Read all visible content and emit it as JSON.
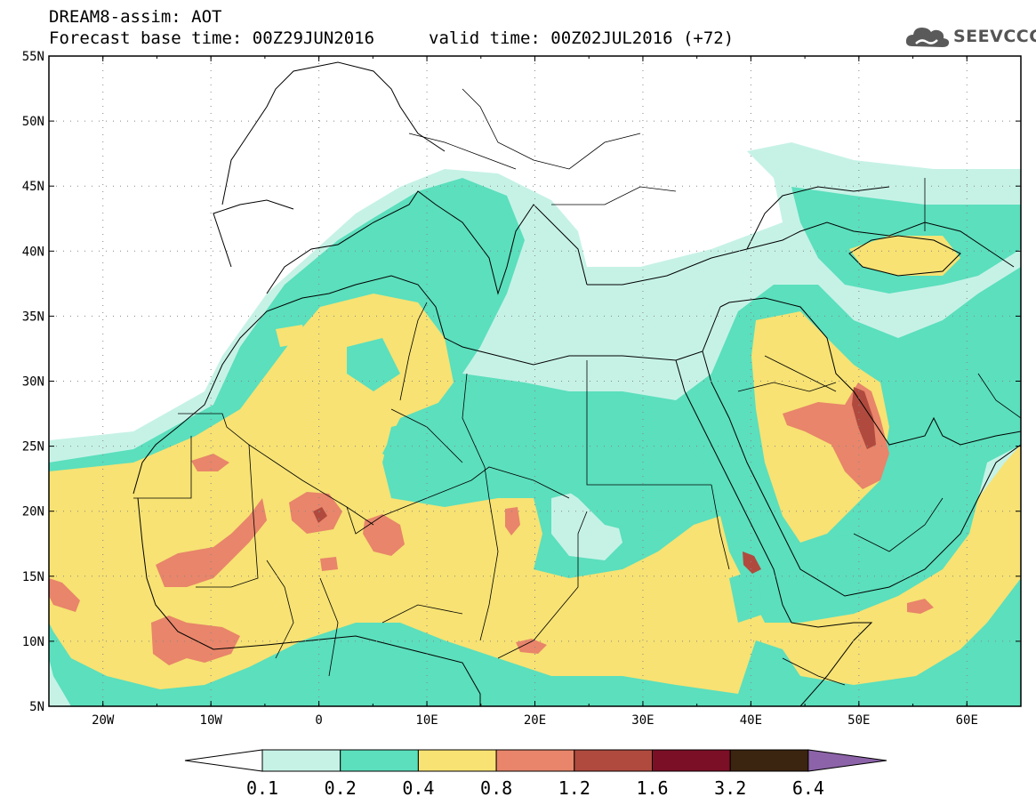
{
  "header": {
    "line1": "DREAM8-assim: AOT",
    "line2": "Forecast base time: 00Z29JUN2016",
    "valid": "valid time: 00Z02JUL2016 (+72)",
    "logo_text": "SEEVCCC",
    "logo_icon": "cloud-logo-icon"
  },
  "map": {
    "lat_labels": [
      "55N",
      "50N",
      "45N",
      "40N",
      "35N",
      "30N",
      "25N",
      "20N",
      "15N",
      "10N",
      "5N"
    ],
    "lon_labels": [
      "20W",
      "10W",
      "0",
      "10E",
      "20E",
      "30E",
      "40E",
      "50E",
      "60E"
    ],
    "extent": {
      "lon": [
        -25,
        65
      ],
      "lat": [
        5,
        55
      ]
    },
    "grid": "dotted"
  },
  "colorbar": {
    "labels": [
      "0.1",
      "0.2",
      "0.4",
      "0.8",
      "1.2",
      "1.6",
      "3.2",
      "6.4"
    ],
    "colors": [
      "#ffffff",
      "#c6f2e6",
      "#5bdfbd",
      "#f7e273",
      "#e8856a",
      "#b04a3e",
      "#7b0f26",
      "#3b2410",
      "#8c63a8"
    ]
  }
}
